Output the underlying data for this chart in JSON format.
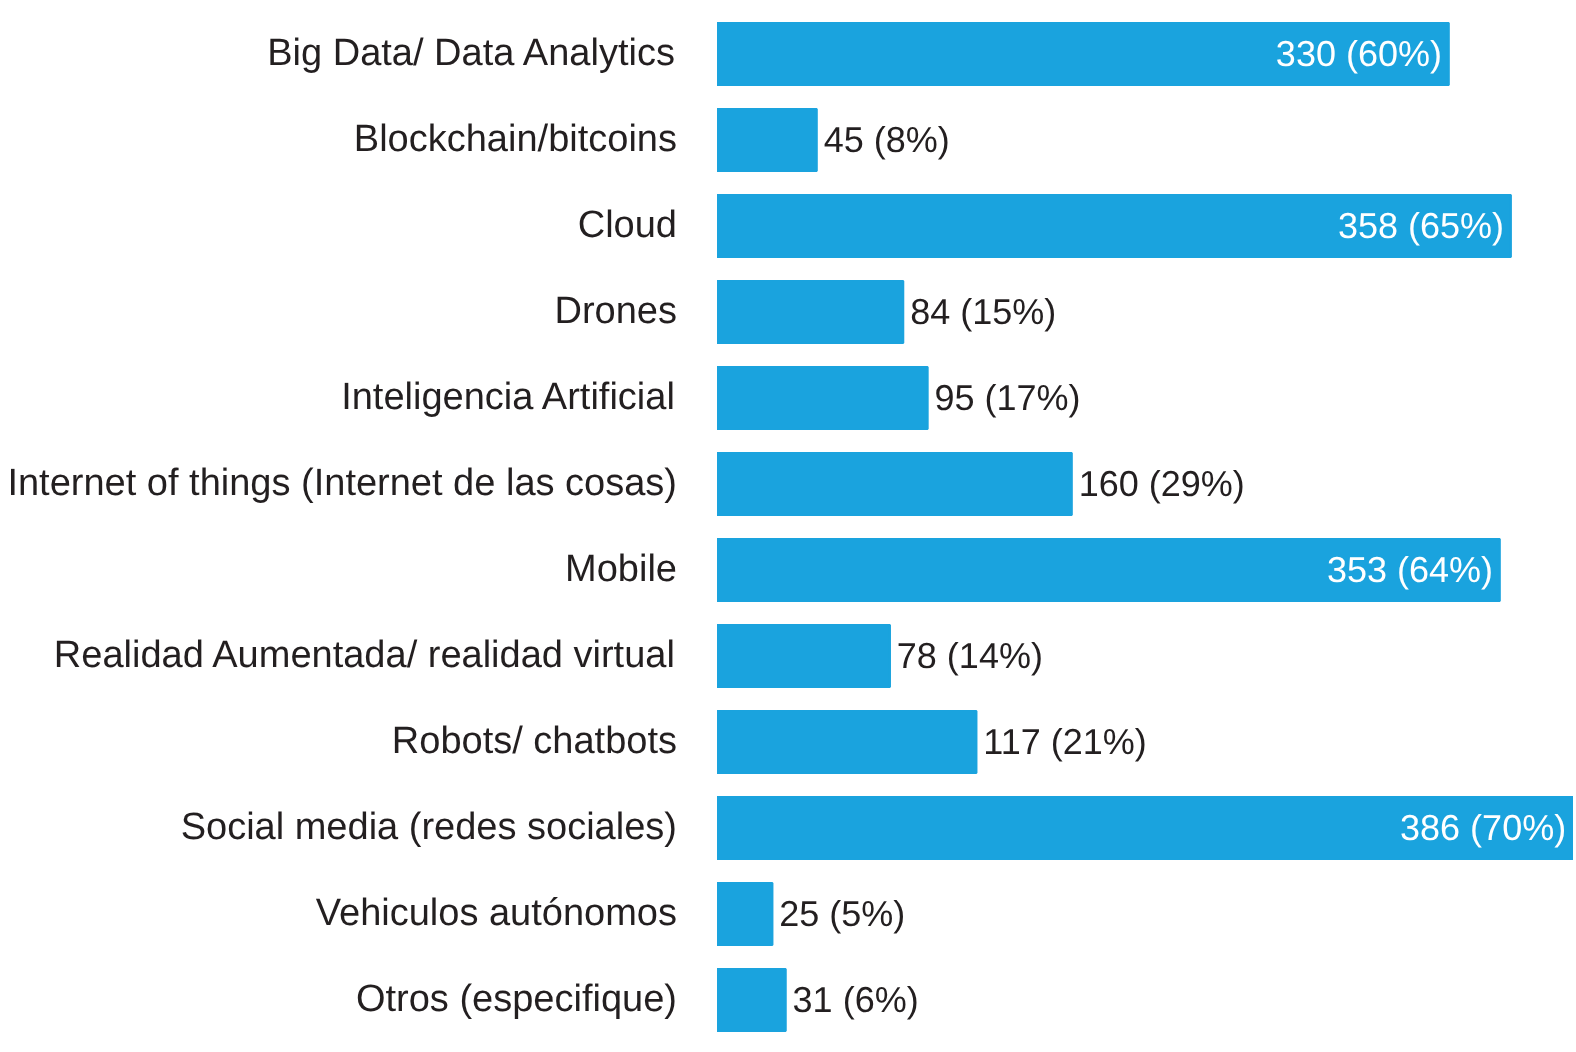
{
  "chart_data": {
    "type": "bar",
    "orientation": "horizontal",
    "categories": [
      "Big Data/ Data Analytics",
      "Blockchain/bitcoins",
      "Cloud",
      "Drones",
      "Inteligencia Artificial",
      "Internet of things (Internet de las cosas)",
      "Mobile",
      "Realidad Aumentada/ realidad virtual",
      "Robots/ chatbots",
      "Social media (redes sociales)",
      "Vehiculos autónomos",
      "Otros (especifique)"
    ],
    "values": [
      330,
      45,
      358,
      84,
      95,
      160,
      353,
      78,
      117,
      386,
      25,
      31
    ],
    "value_labels": [
      "330 (60%)",
      "45 (8%)",
      "358 (65%)",
      "84 (15%)",
      "95 (17%)",
      "160 (29%)",
      "353 (64%)",
      "78 (14%)",
      "117 (21%)",
      "386 (70%)",
      "25 (5%)",
      "31 (6%)"
    ],
    "color": "#1aa3de",
    "grid": false
  }
}
